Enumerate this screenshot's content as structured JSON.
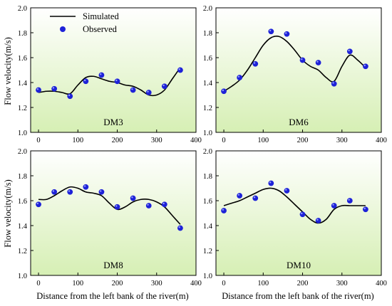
{
  "colors": {
    "bg_top": "#ffffff",
    "bg_bottom": "#d6efb4",
    "line": "#000000",
    "point": "#1e22d8"
  },
  "ylabel": "Flow velocity(m/s)",
  "xlabel": "Distance from the left bank of the river(m)",
  "legend": {
    "simulated": "Simulated",
    "observed": "Observed"
  },
  "chart_data": [
    {
      "type": "line",
      "panel": "DM3",
      "xlim": [
        -20,
        400
      ],
      "ylim": [
        1.0,
        2.0
      ],
      "xticks": [
        0,
        100,
        200,
        300,
        400
      ],
      "yticks": [
        1.0,
        1.2,
        1.4,
        1.6,
        1.8,
        2.0
      ],
      "observed": {
        "x": [
          0,
          40,
          80,
          120,
          160,
          200,
          240,
          280,
          320,
          360
        ],
        "y": [
          1.34,
          1.35,
          1.29,
          1.41,
          1.46,
          1.41,
          1.34,
          1.32,
          1.37,
          1.5
        ]
      },
      "simulated": {
        "x": [
          0,
          20,
          40,
          60,
          80,
          100,
          120,
          140,
          160,
          180,
          200,
          220,
          240,
          260,
          280,
          300,
          320,
          340,
          360
        ],
        "y": [
          1.32,
          1.33,
          1.33,
          1.32,
          1.31,
          1.38,
          1.44,
          1.45,
          1.43,
          1.41,
          1.4,
          1.38,
          1.37,
          1.34,
          1.3,
          1.3,
          1.34,
          1.43,
          1.52
        ]
      },
      "legend": "top-left"
    },
    {
      "type": "line",
      "panel": "DM6",
      "xlim": [
        -20,
        400
      ],
      "ylim": [
        1.0,
        2.0
      ],
      "xticks": [
        0,
        100,
        200,
        300,
        400
      ],
      "yticks": [
        1.0,
        1.2,
        1.4,
        1.6,
        1.8,
        2.0
      ],
      "observed": {
        "x": [
          0,
          40,
          80,
          120,
          160,
          200,
          240,
          280,
          320,
          360
        ],
        "y": [
          1.33,
          1.44,
          1.55,
          1.81,
          1.79,
          1.58,
          1.56,
          1.39,
          1.65,
          1.53
        ]
      },
      "simulated": {
        "x": [
          0,
          20,
          40,
          60,
          80,
          100,
          120,
          140,
          160,
          180,
          200,
          220,
          240,
          260,
          280,
          300,
          320,
          340,
          360
        ],
        "y": [
          1.33,
          1.37,
          1.42,
          1.5,
          1.6,
          1.7,
          1.76,
          1.77,
          1.73,
          1.66,
          1.58,
          1.53,
          1.5,
          1.44,
          1.41,
          1.53,
          1.62,
          1.58,
          1.52
        ]
      }
    },
    {
      "type": "line",
      "panel": "DM8",
      "xlim": [
        -20,
        400
      ],
      "ylim": [
        1.0,
        2.0
      ],
      "xticks": [
        0,
        100,
        200,
        300,
        400
      ],
      "yticks": [
        1.0,
        1.2,
        1.4,
        1.6,
        1.8,
        2.0
      ],
      "observed": {
        "x": [
          0,
          40,
          80,
          120,
          160,
          200,
          240,
          280,
          320,
          360
        ],
        "y": [
          1.57,
          1.67,
          1.67,
          1.71,
          1.67,
          1.55,
          1.62,
          1.56,
          1.57,
          1.38
        ]
      },
      "simulated": {
        "x": [
          0,
          20,
          40,
          60,
          80,
          100,
          120,
          140,
          160,
          180,
          200,
          220,
          240,
          260,
          280,
          300,
          320,
          340,
          360
        ],
        "y": [
          1.61,
          1.61,
          1.64,
          1.68,
          1.71,
          1.7,
          1.67,
          1.66,
          1.64,
          1.58,
          1.53,
          1.55,
          1.59,
          1.61,
          1.61,
          1.59,
          1.55,
          1.48,
          1.41
        ]
      }
    },
    {
      "type": "line",
      "panel": "DM10",
      "xlim": [
        -20,
        400
      ],
      "ylim": [
        1.0,
        2.0
      ],
      "xticks": [
        0,
        100,
        200,
        300,
        400
      ],
      "yticks": [
        1.0,
        1.2,
        1.4,
        1.6,
        1.8,
        2.0
      ],
      "observed": {
        "x": [
          0,
          40,
          80,
          120,
          160,
          200,
          240,
          280,
          320,
          360
        ],
        "y": [
          1.52,
          1.64,
          1.62,
          1.74,
          1.68,
          1.49,
          1.44,
          1.56,
          1.6,
          1.53
        ]
      },
      "simulated": {
        "x": [
          0,
          20,
          40,
          60,
          80,
          100,
          120,
          140,
          160,
          180,
          200,
          220,
          240,
          260,
          280,
          300,
          320,
          340,
          360
        ],
        "y": [
          1.56,
          1.58,
          1.6,
          1.63,
          1.66,
          1.69,
          1.7,
          1.68,
          1.63,
          1.57,
          1.51,
          1.45,
          1.42,
          1.45,
          1.53,
          1.56,
          1.56,
          1.56,
          1.56
        ]
      }
    }
  ]
}
